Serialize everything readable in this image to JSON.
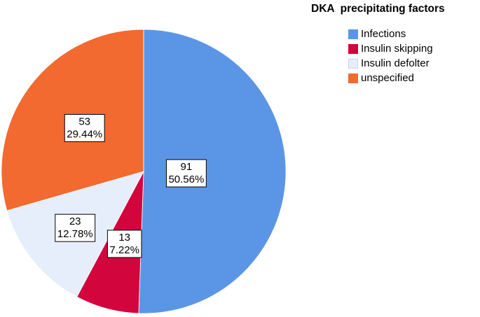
{
  "chart_data": {
    "type": "pie",
    "title": "DKA  precipitating factors",
    "legend_position": "top-right",
    "slices": [
      {
        "name": "Infections",
        "count": "91",
        "percent": "50.56%",
        "value": 91,
        "color": "#5b96e6"
      },
      {
        "name": "Insulin skipping",
        "count": "13",
        "percent": "7.22%",
        "value": 13,
        "color": "#d3053d"
      },
      {
        "name": "Insulin defolter",
        "count": "23",
        "percent": "12.78%",
        "value": 23,
        "color": "#e6eefb"
      },
      {
        "name": "unspecified",
        "count": "53",
        "percent": "29.44%",
        "value": 53,
        "color": "#f26a30"
      }
    ]
  }
}
